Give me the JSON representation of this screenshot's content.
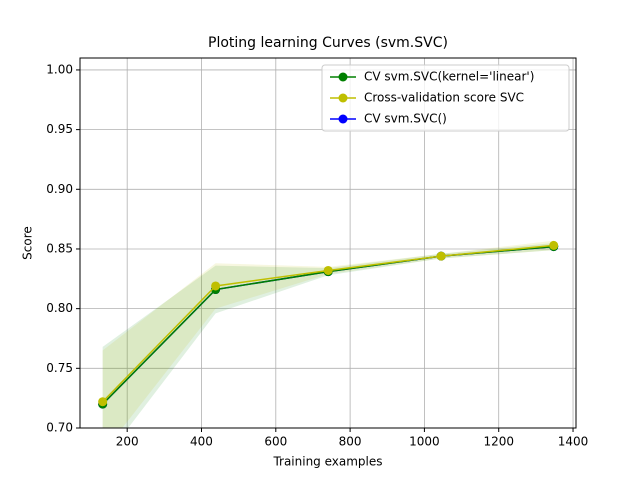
{
  "chart_data": {
    "type": "line",
    "title": "Ploting learning Curves (svm.SVC)",
    "x_label": "Training examples",
    "y_label": "Score",
    "x": [
      134,
      438,
      741,
      1045,
      1348
    ],
    "series": [
      {
        "name": "CV svm.SVC(kernel='linear')",
        "color": "#008000",
        "values": [
          0.72,
          0.816,
          0.831,
          0.844,
          0.852
        ],
        "std": [
          0.048,
          0.02,
          0.003,
          0.002,
          0.003
        ]
      },
      {
        "name": "Cross-validation score SVC",
        "color": "#bfbf00",
        "values": [
          0.722,
          0.819,
          0.832,
          0.844,
          0.853
        ],
        "std": [
          0.043,
          0.019,
          0.003,
          0.002,
          0.004
        ]
      },
      {
        "name": "CV svm.SVC()",
        "color": "#0000ff",
        "values": [
          0.72,
          0.816,
          0.831,
          0.844,
          0.852
        ]
      }
    ],
    "xlim": [
      73,
      1408
    ],
    "xticks": [
      200,
      400,
      600,
      800,
      1000,
      1200,
      1400
    ],
    "ylim": [
      0.7,
      1.01
    ],
    "yticks": [
      {
        "value": 0.7,
        "label": "0.70"
      },
      {
        "value": 0.75,
        "label": "0.75"
      },
      {
        "value": 0.8,
        "label": "0.80"
      },
      {
        "value": 0.85,
        "label": "0.85"
      },
      {
        "value": 0.9,
        "label": "0.90"
      },
      {
        "value": 0.95,
        "label": "0.95"
      },
      {
        "value": 1.0,
        "label": "1.00"
      }
    ],
    "grid": true,
    "legend": "upper right"
  }
}
